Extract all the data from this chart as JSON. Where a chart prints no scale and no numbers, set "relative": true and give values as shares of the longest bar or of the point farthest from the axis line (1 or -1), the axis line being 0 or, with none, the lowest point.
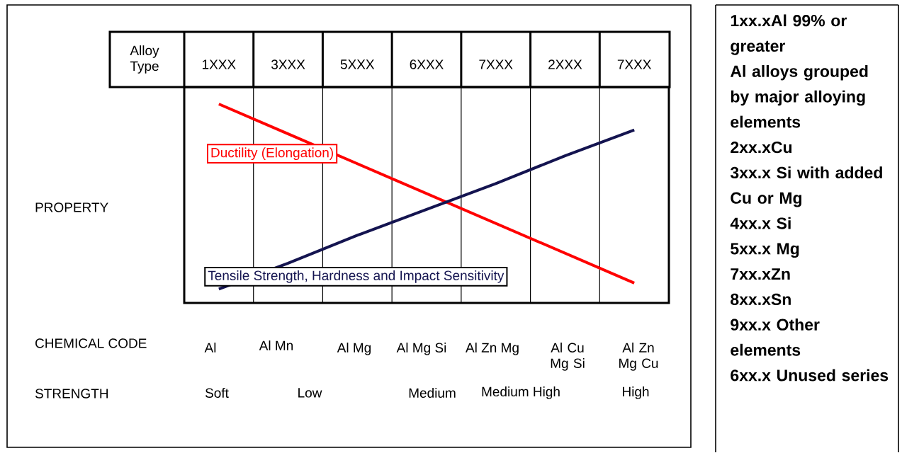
{
  "chart_data": {
    "type": "line",
    "relative": true,
    "xlabel": "Alloy Type",
    "grid": "x",
    "categories": [
      "1XXX",
      "3XXX",
      "5XXX",
      "6XXX",
      "7XXX",
      "2XXX",
      "7XXX"
    ],
    "series": [
      {
        "name": "Ductility (Elongation)",
        "color": "#ff0000",
        "values": [
          1,
          0.85,
          0.7,
          0.55,
          0.4,
          0.25,
          0.1
        ]
      },
      {
        "name": "Tensile Strength, Hardness and Impact Sensitivity",
        "color": "#141450",
        "values": [
          0.07,
          0.2,
          0.34,
          0.47,
          0.6,
          0.74,
          0.87
        ]
      }
    ],
    "annotations": [
      "PROPERTY",
      "CHEMICAL CODE",
      "Al",
      "Al Mn",
      "Al Mg",
      "Al Mg Si",
      "Al Zn Mg",
      "Al Cu Mg Si",
      "Al Zn Mg Cu",
      "STRENGTH",
      "Soft",
      "Low",
      "Medium",
      "Medium High",
      "High",
      "1xx.xAl 99% or greater",
      "Al alloys grouped by major alloying elements",
      "2xx.xCu",
      "3xx.x Si with added Cu or Mg",
      "4xx.x Si",
      "5xx.x Mg",
      "7xx.xZn",
      "8xx.xSn",
      "9xx.x Other elements",
      "6xx.x Unused series"
    ]
  }
}
